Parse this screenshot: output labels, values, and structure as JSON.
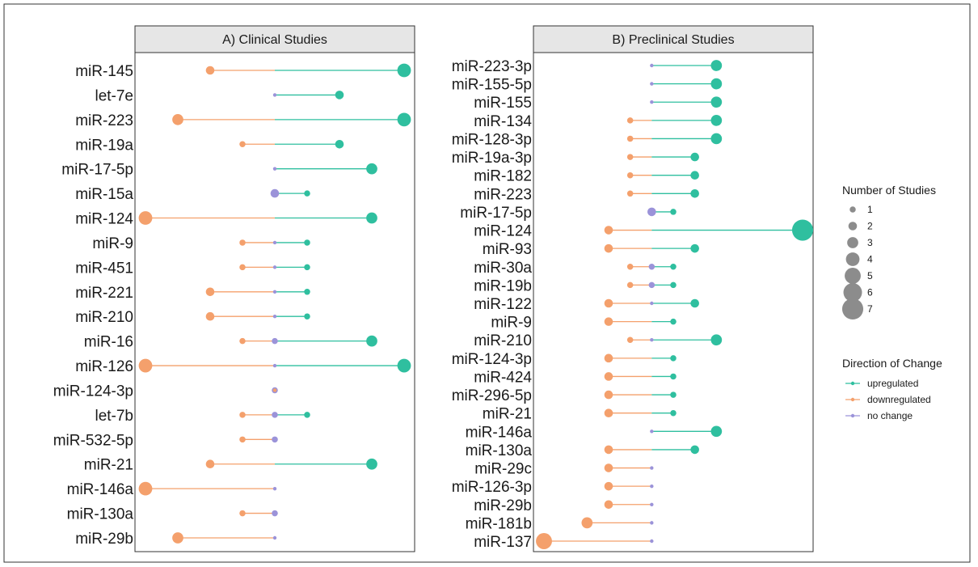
{
  "colors": {
    "upregulated": "#2fbf9f",
    "downregulated": "#f4a06c",
    "no change": "#9b93d9",
    "size_key": "#8c8c8c"
  },
  "chart_data": [
    {
      "type": "lollipop",
      "title": "A) Clinical Studies",
      "note": "x = number of studies (signed by direction); point size = number of studies",
      "xlim": [
        -4.0,
        4.0
      ],
      "categories": [
        "miR-145",
        "let-7e",
        "miR-223",
        "miR-19a",
        "miR-17-5p",
        "miR-15a",
        "miR-124",
        "miR-9",
        "miR-451",
        "miR-221",
        "miR-210",
        "miR-16",
        "miR-126",
        "miR-124-3p",
        "let-7b",
        "miR-532-5p",
        "miR-21",
        "miR-146a",
        "miR-130a",
        "miR-29b"
      ],
      "rows": [
        {
          "label": "miR-145",
          "points": [
            {
              "dir": "downregulated",
              "n": 2
            },
            {
              "dir": "upregulated",
              "n": 4
            }
          ]
        },
        {
          "label": "let-7e",
          "points": [
            {
              "dir": "no change",
              "n": 0
            },
            {
              "dir": "upregulated",
              "n": 2
            }
          ]
        },
        {
          "label": "miR-223",
          "points": [
            {
              "dir": "downregulated",
              "n": 3
            },
            {
              "dir": "upregulated",
              "n": 4
            }
          ]
        },
        {
          "label": "miR-19a",
          "points": [
            {
              "dir": "downregulated",
              "n": 1
            },
            {
              "dir": "upregulated",
              "n": 2
            }
          ]
        },
        {
          "label": "miR-17-5p",
          "points": [
            {
              "dir": "no change",
              "n": 0
            },
            {
              "dir": "upregulated",
              "n": 3
            }
          ]
        },
        {
          "label": "miR-15a",
          "points": [
            {
              "dir": "no change",
              "n": 2
            },
            {
              "dir": "upregulated",
              "n": 1
            }
          ]
        },
        {
          "label": "miR-124",
          "points": [
            {
              "dir": "downregulated",
              "n": 4
            },
            {
              "dir": "upregulated",
              "n": 3
            }
          ]
        },
        {
          "label": "miR-9",
          "points": [
            {
              "dir": "downregulated",
              "n": 1
            },
            {
              "dir": "no change",
              "n": 0
            },
            {
              "dir": "upregulated",
              "n": 1
            }
          ]
        },
        {
          "label": "miR-451",
          "points": [
            {
              "dir": "downregulated",
              "n": 1
            },
            {
              "dir": "no change",
              "n": 0
            },
            {
              "dir": "upregulated",
              "n": 1
            }
          ]
        },
        {
          "label": "miR-221",
          "points": [
            {
              "dir": "downregulated",
              "n": 2
            },
            {
              "dir": "no change",
              "n": 0
            },
            {
              "dir": "upregulated",
              "n": 1
            }
          ]
        },
        {
          "label": "miR-210",
          "points": [
            {
              "dir": "downregulated",
              "n": 2
            },
            {
              "dir": "no change",
              "n": 0
            },
            {
              "dir": "upregulated",
              "n": 1
            }
          ]
        },
        {
          "label": "miR-16",
          "points": [
            {
              "dir": "downregulated",
              "n": 1
            },
            {
              "dir": "no change",
              "n": 1
            },
            {
              "dir": "upregulated",
              "n": 3
            }
          ]
        },
        {
          "label": "miR-126",
          "points": [
            {
              "dir": "downregulated",
              "n": 4
            },
            {
              "dir": "no change",
              "n": 0
            },
            {
              "dir": "upregulated",
              "n": 4
            }
          ]
        },
        {
          "label": "miR-124-3p",
          "points": [
            {
              "dir": "downregulated",
              "n": 0
            },
            {
              "dir": "no change",
              "n": 1
            }
          ]
        },
        {
          "label": "let-7b",
          "points": [
            {
              "dir": "downregulated",
              "n": 1
            },
            {
              "dir": "no change",
              "n": 1
            },
            {
              "dir": "upregulated",
              "n": 1
            }
          ]
        },
        {
          "label": "miR-532-5p",
          "points": [
            {
              "dir": "downregulated",
              "n": 1
            },
            {
              "dir": "no change",
              "n": 1
            }
          ]
        },
        {
          "label": "miR-21",
          "points": [
            {
              "dir": "downregulated",
              "n": 2
            },
            {
              "dir": "upregulated",
              "n": 3
            }
          ]
        },
        {
          "label": "miR-146a",
          "points": [
            {
              "dir": "downregulated",
              "n": 4
            },
            {
              "dir": "no change",
              "n": 0
            }
          ]
        },
        {
          "label": "miR-130a",
          "points": [
            {
              "dir": "downregulated",
              "n": 1
            },
            {
              "dir": "no change",
              "n": 1
            }
          ]
        },
        {
          "label": "miR-29b",
          "points": [
            {
              "dir": "downregulated",
              "n": 3
            },
            {
              "dir": "no change",
              "n": 0
            }
          ]
        }
      ]
    },
    {
      "type": "lollipop",
      "title": "B) Preclinical Studies",
      "note": "x = number of studies (signed by direction); point size = number of studies",
      "xlim": [
        -5.0,
        7.0
      ],
      "categories": [
        "miR-223-3p",
        "miR-155-5p",
        "miR-155",
        "miR-134",
        "miR-128-3p",
        "miR-19a-3p",
        "miR-182",
        "miR-223",
        "miR-17-5p",
        "miR-124",
        "miR-93",
        "miR-30a",
        "miR-19b",
        "miR-122",
        "miR-9",
        "miR-210",
        "miR-124-3p",
        "miR-424",
        "miR-296-5p",
        "miR-21",
        "miR-146a",
        "miR-130a",
        "miR-29c",
        "miR-126-3p",
        "miR-29b",
        "miR-181b",
        "miR-137"
      ],
      "rows": [
        {
          "label": "miR-223-3p",
          "points": [
            {
              "dir": "no change",
              "n": 0
            },
            {
              "dir": "upregulated",
              "n": 3
            }
          ]
        },
        {
          "label": "miR-155-5p",
          "points": [
            {
              "dir": "no change",
              "n": 0
            },
            {
              "dir": "upregulated",
              "n": 3
            }
          ]
        },
        {
          "label": "miR-155",
          "points": [
            {
              "dir": "no change",
              "n": 0
            },
            {
              "dir": "upregulated",
              "n": 3
            }
          ]
        },
        {
          "label": "miR-134",
          "points": [
            {
              "dir": "downregulated",
              "n": 1
            },
            {
              "dir": "upregulated",
              "n": 3
            }
          ]
        },
        {
          "label": "miR-128-3p",
          "points": [
            {
              "dir": "downregulated",
              "n": 1
            },
            {
              "dir": "upregulated",
              "n": 3
            }
          ]
        },
        {
          "label": "miR-19a-3p",
          "points": [
            {
              "dir": "downregulated",
              "n": 1
            },
            {
              "dir": "upregulated",
              "n": 2
            }
          ]
        },
        {
          "label": "miR-182",
          "points": [
            {
              "dir": "downregulated",
              "n": 1
            },
            {
              "dir": "upregulated",
              "n": 2
            }
          ]
        },
        {
          "label": "miR-223",
          "points": [
            {
              "dir": "downregulated",
              "n": 1
            },
            {
              "dir": "upregulated",
              "n": 2
            }
          ]
        },
        {
          "label": "miR-17-5p",
          "points": [
            {
              "dir": "no change",
              "n": 2
            },
            {
              "dir": "upregulated",
              "n": 1
            }
          ]
        },
        {
          "label": "miR-124",
          "points": [
            {
              "dir": "downregulated",
              "n": 2
            },
            {
              "dir": "upregulated",
              "n": 7
            }
          ]
        },
        {
          "label": "miR-93",
          "points": [
            {
              "dir": "downregulated",
              "n": 2
            },
            {
              "dir": "upregulated",
              "n": 2
            }
          ]
        },
        {
          "label": "miR-30a",
          "points": [
            {
              "dir": "downregulated",
              "n": 1
            },
            {
              "dir": "no change",
              "n": 1
            },
            {
              "dir": "upregulated",
              "n": 1
            }
          ]
        },
        {
          "label": "miR-19b",
          "points": [
            {
              "dir": "downregulated",
              "n": 1
            },
            {
              "dir": "no change",
              "n": 1
            },
            {
              "dir": "upregulated",
              "n": 1
            }
          ]
        },
        {
          "label": "miR-122",
          "points": [
            {
              "dir": "downregulated",
              "n": 2
            },
            {
              "dir": "no change",
              "n": 0
            },
            {
              "dir": "upregulated",
              "n": 2
            }
          ]
        },
        {
          "label": "miR-9",
          "points": [
            {
              "dir": "downregulated",
              "n": 2
            },
            {
              "dir": "upregulated",
              "n": 1
            }
          ]
        },
        {
          "label": "miR-210",
          "points": [
            {
              "dir": "downregulated",
              "n": 1
            },
            {
              "dir": "no change",
              "n": 0
            },
            {
              "dir": "upregulated",
              "n": 3
            }
          ]
        },
        {
          "label": "miR-124-3p",
          "points": [
            {
              "dir": "downregulated",
              "n": 2
            },
            {
              "dir": "upregulated",
              "n": 1
            }
          ]
        },
        {
          "label": "miR-424",
          "points": [
            {
              "dir": "downregulated",
              "n": 2
            },
            {
              "dir": "upregulated",
              "n": 1
            }
          ]
        },
        {
          "label": "miR-296-5p",
          "points": [
            {
              "dir": "downregulated",
              "n": 2
            },
            {
              "dir": "upregulated",
              "n": 1
            }
          ]
        },
        {
          "label": "miR-21",
          "points": [
            {
              "dir": "downregulated",
              "n": 2
            },
            {
              "dir": "upregulated",
              "n": 1
            }
          ]
        },
        {
          "label": "miR-146a",
          "points": [
            {
              "dir": "no change",
              "n": 0
            },
            {
              "dir": "upregulated",
              "n": 3
            }
          ]
        },
        {
          "label": "miR-130a",
          "points": [
            {
              "dir": "downregulated",
              "n": 2
            },
            {
              "dir": "upregulated",
              "n": 2
            }
          ]
        },
        {
          "label": "miR-29c",
          "points": [
            {
              "dir": "downregulated",
              "n": 2
            },
            {
              "dir": "no change",
              "n": 0
            }
          ]
        },
        {
          "label": "miR-126-3p",
          "points": [
            {
              "dir": "downregulated",
              "n": 2
            },
            {
              "dir": "no change",
              "n": 0
            }
          ]
        },
        {
          "label": "miR-29b",
          "points": [
            {
              "dir": "downregulated",
              "n": 2
            },
            {
              "dir": "no change",
              "n": 0
            }
          ]
        },
        {
          "label": "miR-181b",
          "points": [
            {
              "dir": "downregulated",
              "n": 3
            },
            {
              "dir": "no change",
              "n": 0
            }
          ]
        },
        {
          "label": "miR-137",
          "points": [
            {
              "dir": "downregulated",
              "n": 5
            },
            {
              "dir": "no change",
              "n": 0
            }
          ]
        }
      ]
    }
  ],
  "legend": {
    "size_title": "Number of Studies",
    "size_levels": [
      "1",
      "2",
      "3",
      "4",
      "5",
      "6",
      "7"
    ],
    "direction_title": "Direction of Change",
    "direction_entries": [
      {
        "key": "upregulated",
        "label": "upregulated"
      },
      {
        "key": "downregulated",
        "label": "downregulated"
      },
      {
        "key": "no change",
        "label": "no change"
      }
    ]
  }
}
